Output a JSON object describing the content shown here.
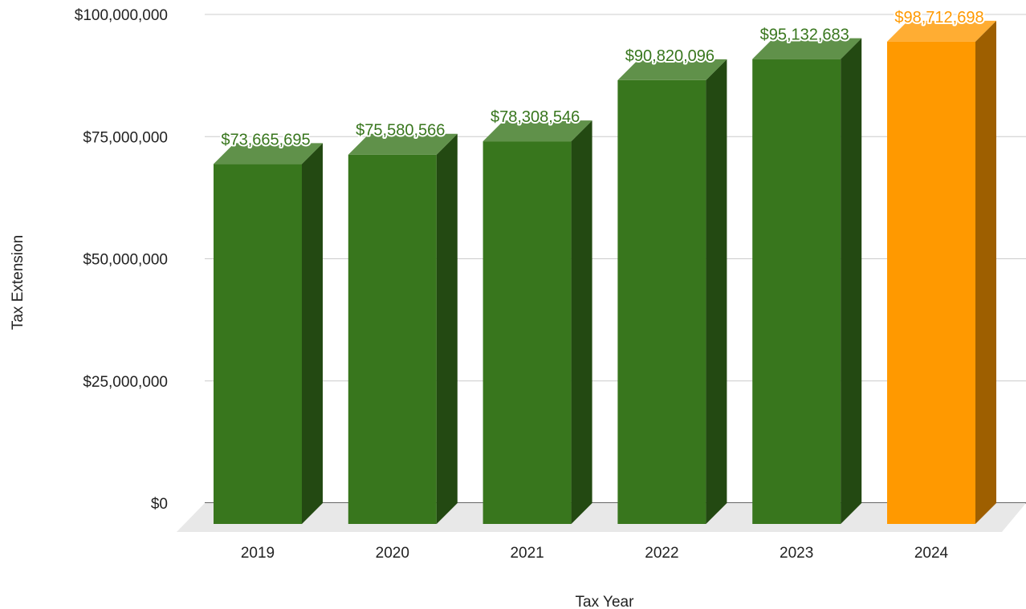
{
  "chart_data": {
    "type": "bar",
    "style": "3d-column",
    "categories": [
      "2019",
      "2020",
      "2021",
      "2022",
      "2023",
      "2024"
    ],
    "values": [
      73665695,
      75580566,
      78308546,
      90820096,
      95132683,
      98712698
    ],
    "data_labels": [
      "$73,665,695",
      "$75,580,566",
      "$78,308,546",
      "$90,820,096",
      "$95,132,683",
      "$98,712,698"
    ],
    "bar_colors": [
      "#38761d",
      "#38761d",
      "#38761d",
      "#38761d",
      "#38761d",
      "#ff9900"
    ],
    "label_colors": [
      "#38761d",
      "#38761d",
      "#38761d",
      "#38761d",
      "#38761d",
      "#ff9900"
    ],
    "title": "",
    "xlabel": "Tax Year",
    "ylabel": "Tax Extension",
    "ylim": [
      0,
      100000000
    ],
    "yticks": [
      0,
      25000000,
      50000000,
      75000000,
      100000000
    ],
    "ytick_labels": [
      "$0",
      "$25,000,000",
      "$50,000,000",
      "$75,000,000",
      "$100,000,000"
    ],
    "grid": true,
    "legend": "none"
  }
}
